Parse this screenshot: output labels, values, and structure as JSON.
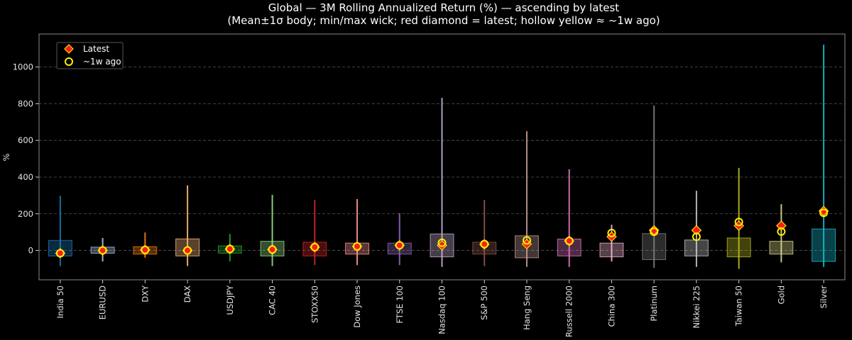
{
  "chart_data": {
    "type": "box",
    "title": "Global — 3M Rolling Annualized Return (%) — ascending by latest",
    "subtitle": "(Mean±1σ body; min/max wick; red diamond = latest; hollow yellow ≈ ~1w ago)",
    "ylabel": "%",
    "ylim": [
      -160,
      1180
    ],
    "yticks": [
      0,
      200,
      400,
      600,
      800,
      1000
    ],
    "grid": true,
    "legend": {
      "position": "top-left",
      "entries": [
        {
          "label": "Latest",
          "marker": "red-diamond"
        },
        {
          "label": "~1w ago",
          "marker": "hollow-yellow-circle"
        }
      ]
    },
    "series": [
      {
        "name": "India 50",
        "color": "#1f77b4",
        "min": -85,
        "max": 298,
        "body_low": -30,
        "body_high": 55,
        "latest": -15,
        "week_ago": -15
      },
      {
        "name": "EURUSD",
        "color": "#aec7e8",
        "min": -60,
        "max": 68,
        "body_low": -15,
        "body_high": 18,
        "latest": 0,
        "week_ago": 0
      },
      {
        "name": "DXY",
        "color": "#ff7f0e",
        "min": -40,
        "max": 98,
        "body_low": -20,
        "body_high": 20,
        "latest": 3,
        "week_ago": 3
      },
      {
        "name": "DAX",
        "color": "#ffbb78",
        "min": -85,
        "max": 355,
        "body_low": -30,
        "body_high": 63,
        "latest": 0,
        "week_ago": 0
      },
      {
        "name": "USDJPY",
        "color": "#2ca02c",
        "min": -60,
        "max": 90,
        "body_low": -15,
        "body_high": 25,
        "latest": 8,
        "week_ago": 8
      },
      {
        "name": "CAC 40",
        "color": "#98df8a",
        "min": -85,
        "max": 303,
        "body_low": -30,
        "body_high": 50,
        "latest": 5,
        "week_ago": 5
      },
      {
        "name": "STOXX50",
        "color": "#d62728",
        "min": -80,
        "max": 275,
        "body_low": -30,
        "body_high": 45,
        "latest": 18,
        "week_ago": 18
      },
      {
        "name": "Dow Jones",
        "color": "#ff9896",
        "min": -80,
        "max": 280,
        "body_low": -20,
        "body_high": 40,
        "latest": 22,
        "week_ago": 22
      },
      {
        "name": "FTSE 100",
        "color": "#9467bd",
        "min": -80,
        "max": 203,
        "body_low": -20,
        "body_high": 40,
        "latest": 28,
        "week_ago": 28
      },
      {
        "name": "Nasdaq 100",
        "color": "#c5b0d5",
        "min": -90,
        "max": 832,
        "body_low": -35,
        "body_high": 90,
        "latest": 28,
        "week_ago": 42
      },
      {
        "name": "S&P 500",
        "color": "#8c564b",
        "min": -85,
        "max": 275,
        "body_low": -20,
        "body_high": 45,
        "latest": 33,
        "week_ago": 35
      },
      {
        "name": "Hang Seng",
        "color": "#c49c94",
        "min": -90,
        "max": 650,
        "body_low": -40,
        "body_high": 80,
        "latest": 35,
        "week_ago": 55
      },
      {
        "name": "Russell 2000",
        "color": "#e377c2",
        "min": -90,
        "max": 443,
        "body_low": -30,
        "body_high": 62,
        "latest": 52,
        "week_ago": 52
      },
      {
        "name": "China 300",
        "color": "#f7b6d2",
        "min": -60,
        "max": 140,
        "body_low": -35,
        "body_high": 40,
        "latest": 75,
        "week_ago": 95
      },
      {
        "name": "Platinum",
        "color": "#7f7f7f",
        "min": -95,
        "max": 790,
        "body_low": -50,
        "body_high": 92,
        "latest": 110,
        "week_ago": 102
      },
      {
        "name": "Nikkei 225",
        "color": "#c7c7c7",
        "min": -90,
        "max": 325,
        "body_low": -30,
        "body_high": 57,
        "latest": 110,
        "week_ago": 75
      },
      {
        "name": "Taiwan 50",
        "color": "#bcbd22",
        "min": -100,
        "max": 450,
        "body_low": -35,
        "body_high": 68,
        "latest": 135,
        "week_ago": 155
      },
      {
        "name": "Gold",
        "color": "#dbdb8d",
        "min": -65,
        "max": 252,
        "body_low": -20,
        "body_high": 50,
        "latest": 135,
        "week_ago": 103
      },
      {
        "name": "Silver",
        "color": "#17becf",
        "min": -90,
        "max": 1122,
        "body_low": -60,
        "body_high": 117,
        "latest": 215,
        "week_ago": 205
      }
    ]
  }
}
